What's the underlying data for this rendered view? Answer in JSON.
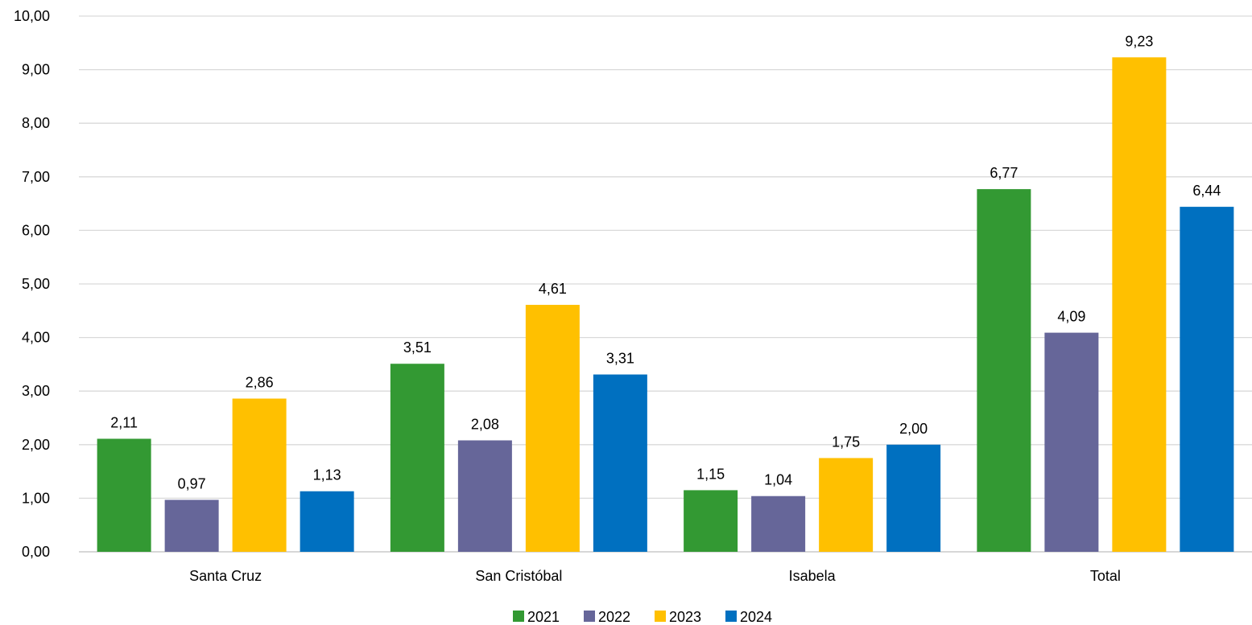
{
  "chart_data": {
    "type": "bar",
    "title": "",
    "xlabel": "",
    "ylabel": "",
    "categories": [
      "Santa Cruz",
      "San Cristóbal",
      "Isabela",
      "Total"
    ],
    "series": [
      {
        "name": "2021",
        "color": "#339933",
        "values": [
          2.11,
          3.51,
          1.15,
          6.77
        ],
        "labels": [
          "2,11",
          "3,51",
          "1,15",
          "6,77"
        ]
      },
      {
        "name": "2022",
        "color": "#666699",
        "values": [
          0.97,
          2.08,
          1.04,
          4.09
        ],
        "labels": [
          "0,97",
          "2,08",
          "1,04",
          "4,09"
        ]
      },
      {
        "name": "2023",
        "color": "#ffc000",
        "values": [
          2.86,
          4.61,
          1.75,
          9.23
        ],
        "labels": [
          "2,86",
          "4,61",
          "1,75",
          "9,23"
        ]
      },
      {
        "name": "2024",
        "color": "#0070c0",
        "values": [
          1.13,
          3.31,
          2.0,
          6.44
        ],
        "labels": [
          "1,13",
          "3,31",
          "2,00",
          "6,44"
        ]
      }
    ],
    "ylim": [
      0,
      10
    ],
    "yticks": [
      0,
      1,
      2,
      3,
      4,
      5,
      6,
      7,
      8,
      9,
      10
    ],
    "ytick_labels": [
      "0,00",
      "1,00",
      "2,00",
      "3,00",
      "4,00",
      "5,00",
      "6,00",
      "7,00",
      "8,00",
      "9,00",
      "10,00"
    ],
    "grid": true,
    "legend_position": "bottom"
  }
}
